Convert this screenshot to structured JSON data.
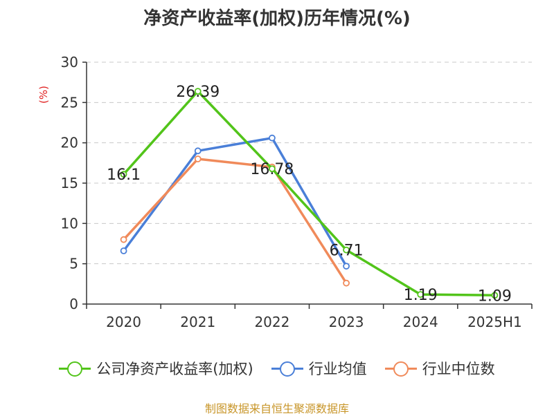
{
  "chart_data": {
    "type": "line",
    "title": "净资产收益率(加权)历年情况(%)",
    "ylabel": "(%)",
    "xlabel": "",
    "categories": [
      "2020",
      "2021",
      "2022",
      "2023",
      "2024",
      "2025H1"
    ],
    "ylim": [
      0,
      30
    ],
    "yticks": [
      0,
      5,
      10,
      15,
      20,
      25,
      30
    ],
    "grid": true,
    "legend_position": "bottom",
    "series": [
      {
        "name": "公司净资产收益率(加权)",
        "color": "#52c41a",
        "values": [
          16.1,
          26.39,
          16.78,
          6.71,
          1.19,
          1.09
        ],
        "data_labels": [
          "16.1",
          "26.39",
          "16.78",
          "6.71",
          "1.19",
          "1.09"
        ]
      },
      {
        "name": "行业均值",
        "color": "#4a7fd8",
        "values": [
          6.6,
          19.0,
          20.6,
          4.7,
          null,
          null
        ]
      },
      {
        "name": "行业中位数",
        "color": "#f08a5a",
        "values": [
          8.0,
          18.0,
          17.0,
          2.6,
          null,
          null
        ]
      }
    ]
  },
  "source_note": "制图数据来自恒生聚源数据库"
}
